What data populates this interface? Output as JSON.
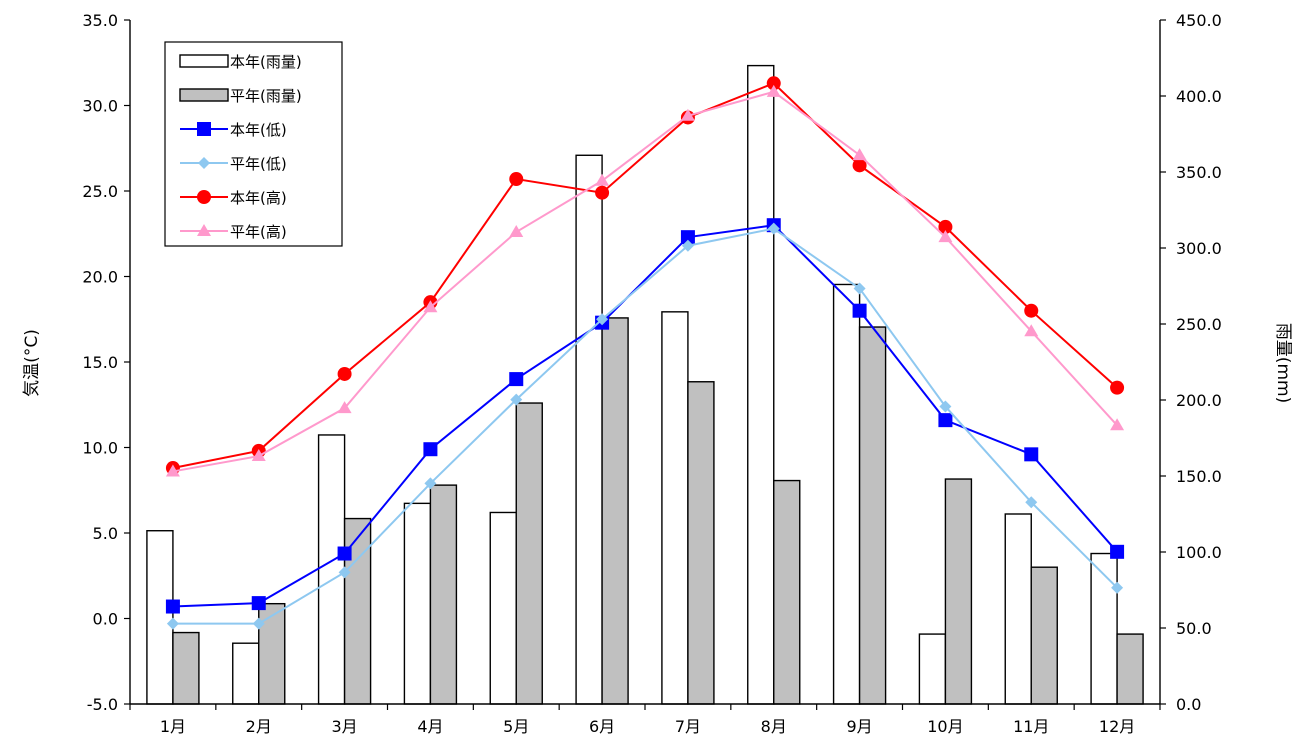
{
  "chart_data": {
    "type": "bar+line",
    "categories": [
      "1月",
      "2月",
      "3月",
      "4月",
      "5月",
      "6月",
      "7月",
      "8月",
      "9月",
      "10月",
      "11月",
      "12月"
    ],
    "y_left": {
      "label": "気温(°C)",
      "ylim": [
        -5.0,
        35.0
      ],
      "ticks": [
        "-5.0",
        "0.0",
        "5.0",
        "10.0",
        "15.0",
        "20.0",
        "25.0",
        "30.0",
        "35.0"
      ]
    },
    "y_right": {
      "label": "雨量(mm)",
      "ylim": [
        0.0,
        450.0
      ],
      "ticks": [
        "0.0",
        "50.0",
        "100.0",
        "150.0",
        "200.0",
        "250.0",
        "300.0",
        "350.0",
        "400.0",
        "450.0"
      ]
    },
    "bar_series": [
      {
        "name": "本年(雨量)",
        "axis": "right",
        "fill": "#ffffff",
        "values": [
          114,
          40,
          177,
          132,
          126,
          361,
          258,
          420,
          276,
          46,
          125,
          99
        ]
      },
      {
        "name": "平年(雨量)",
        "axis": "right",
        "fill": "#c0c0c0",
        "values": [
          47,
          66,
          122,
          144,
          198,
          254,
          212,
          147,
          248,
          148,
          90,
          46
        ]
      }
    ],
    "line_series": [
      {
        "name": "本年(低)",
        "axis": "left",
        "color": "#0000ff",
        "marker": "square",
        "values": [
          0.7,
          0.9,
          3.8,
          9.9,
          14.0,
          17.3,
          22.3,
          23.0,
          18.0,
          11.6,
          9.6,
          3.9
        ]
      },
      {
        "name": "平年(低)",
        "axis": "left",
        "color": "#8ec8f0",
        "marker": "diamond",
        "values": [
          -0.3,
          -0.3,
          2.7,
          7.9,
          12.8,
          17.5,
          21.8,
          22.8,
          19.3,
          12.4,
          6.8,
          1.8
        ]
      },
      {
        "name": "本年(高)",
        "axis": "left",
        "color": "#ff0000",
        "marker": "circle",
        "values": [
          8.8,
          9.8,
          14.3,
          18.5,
          25.7,
          24.9,
          29.3,
          31.3,
          26.5,
          22.9,
          18.0,
          13.5
        ]
      },
      {
        "name": "平年(高)",
        "axis": "left",
        "color": "#ff99cc",
        "marker": "triangle",
        "values": [
          8.6,
          9.5,
          12.3,
          18.2,
          22.6,
          25.6,
          29.4,
          30.8,
          27.1,
          22.3,
          16.8,
          11.3
        ]
      }
    ],
    "legend": {
      "placement": "top-left",
      "items": [
        "本年(雨量)",
        "平年(雨量)",
        "本年(低)",
        "平年(低)",
        "本年(高)",
        "平年(高)"
      ]
    },
    "grid": false
  }
}
